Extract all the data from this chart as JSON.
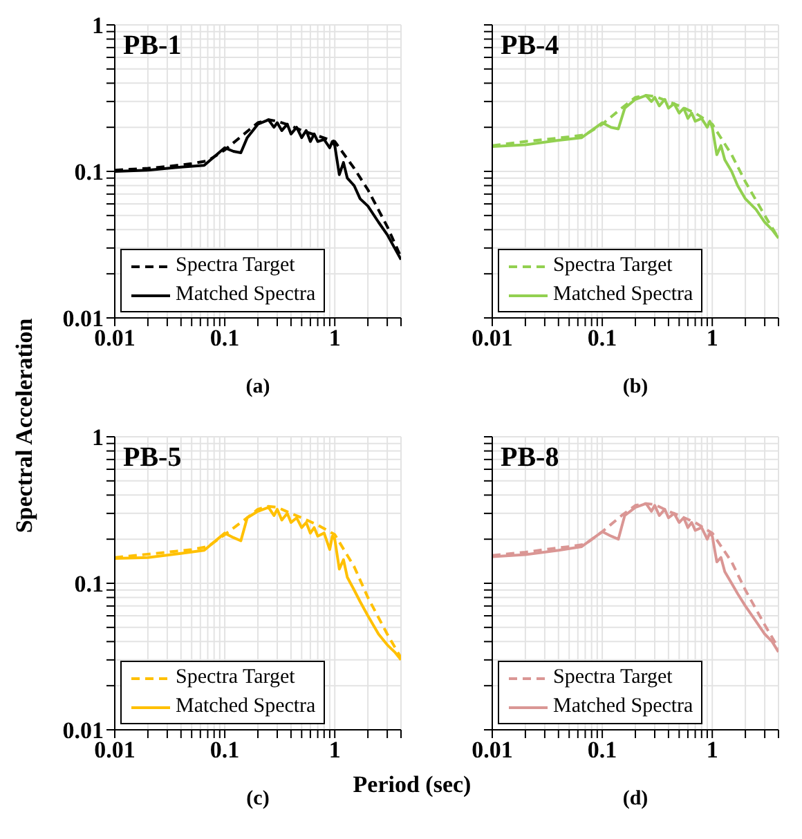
{
  "chart_data": [
    {
      "type": "line",
      "title": "PB-1",
      "ylabel": "Spectral Acceleration",
      "annotations": [
        "(a)"
      ],
      "log": "xy",
      "grid": true,
      "legend": "bottom left",
      "xlim": [
        0.01,
        4
      ],
      "ylim": [
        0.01,
        1
      ],
      "xticks": [
        0.01,
        {
          "value": 0.02,
          "label": null
        },
        {
          "value": 0.03,
          "label": null
        },
        {
          "value": 0.04,
          "label": null
        },
        {
          "value": 0.05,
          "label": null
        },
        {
          "value": 0.06,
          "label": null
        },
        {
          "value": 0.07,
          "label": null
        },
        {
          "value": 0.08,
          "label": null
        },
        {
          "value": 0.09,
          "label": null
        },
        0.1,
        {
          "value": 0.2,
          "label": null
        },
        {
          "value": 0.3,
          "label": null
        },
        {
          "value": 0.4,
          "label": null
        },
        {
          "value": 0.5,
          "label": null
        },
        {
          "value": 0.6,
          "label": null
        },
        {
          "value": 0.7,
          "label": null
        },
        {
          "value": 0.8,
          "label": null
        },
        {
          "value": 0.9,
          "label": null
        },
        1,
        {
          "value": 2,
          "label": null
        },
        {
          "value": 3,
          "label": null
        },
        {
          "value": 4,
          "label": null
        }
      ],
      "yticks": [
        0.01,
        {
          "value": 0.02,
          "label": null
        },
        {
          "value": 0.03,
          "label": null
        },
        {
          "value": 0.04,
          "label": null
        },
        {
          "value": 0.05,
          "label": null
        },
        {
          "value": 0.06,
          "label": null
        },
        {
          "value": 0.07,
          "label": null
        },
        {
          "value": 0.08,
          "label": null
        },
        {
          "value": 0.09,
          "label": null
        },
        0.1,
        {
          "value": 0.2,
          "label": null
        },
        {
          "value": 0.3,
          "label": null
        },
        {
          "value": 0.4,
          "label": null
        },
        {
          "value": 0.5,
          "label": null
        },
        {
          "value": 0.6,
          "label": null
        },
        {
          "value": 0.7,
          "label": null
        },
        {
          "value": 0.8,
          "label": null
        },
        {
          "value": 0.9,
          "label": null
        },
        1
      ],
      "series": [
        {
          "name": "Spectra Target",
          "color": "#000000",
          "line_style": "dashed",
          "x": [
            0.01,
            0.02,
            0.03,
            0.05,
            0.07,
            0.1,
            0.15,
            0.2,
            0.25,
            0.3,
            0.4,
            0.5,
            0.7,
            1,
            1.5,
            2,
            3,
            4
          ],
          "values": [
            0.102,
            0.105,
            0.108,
            0.113,
            0.118,
            0.14,
            0.18,
            0.215,
            0.225,
            0.22,
            0.205,
            0.19,
            0.175,
            0.16,
            0.105,
            0.075,
            0.042,
            0.026
          ]
        },
        {
          "name": "Matched Spectra",
          "color": "#000000",
          "line_style": "solid",
          "x": [
            0.01,
            0.02,
            0.04,
            0.065,
            0.1,
            0.12,
            0.14,
            0.16,
            0.2,
            0.25,
            0.28,
            0.3,
            0.33,
            0.37,
            0.4,
            0.45,
            0.5,
            0.55,
            0.6,
            0.65,
            0.7,
            0.8,
            0.9,
            0.95,
            1,
            1.1,
            1.2,
            1.3,
            1.5,
            1.7,
            2,
            2.5,
            3,
            3.5,
            4
          ],
          "values": [
            0.1,
            0.102,
            0.107,
            0.11,
            0.145,
            0.137,
            0.134,
            0.17,
            0.21,
            0.225,
            0.2,
            0.215,
            0.19,
            0.21,
            0.18,
            0.2,
            0.17,
            0.19,
            0.16,
            0.18,
            0.16,
            0.165,
            0.145,
            0.16,
            0.15,
            0.095,
            0.115,
            0.09,
            0.08,
            0.065,
            0.058,
            0.045,
            0.037,
            0.03,
            0.025
          ]
        }
      ]
    },
    {
      "type": "line",
      "title": "PB-4",
      "annotations": [
        "(b)"
      ],
      "log": "xy",
      "grid": true,
      "legend": "bottom left",
      "tick_labels": "x",
      "xlim": [
        0.01,
        4
      ],
      "ylim": [
        0.01,
        1
      ],
      "xticks": [
        0.01,
        {
          "value": 0.02,
          "label": null
        },
        {
          "value": 0.03,
          "label": null
        },
        {
          "value": 0.04,
          "label": null
        },
        {
          "value": 0.05,
          "label": null
        },
        {
          "value": 0.06,
          "label": null
        },
        {
          "value": 0.07,
          "label": null
        },
        {
          "value": 0.08,
          "label": null
        },
        {
          "value": 0.09,
          "label": null
        },
        0.1,
        {
          "value": 0.2,
          "label": null
        },
        {
          "value": 0.3,
          "label": null
        },
        {
          "value": 0.4,
          "label": null
        },
        {
          "value": 0.5,
          "label": null
        },
        {
          "value": 0.6,
          "label": null
        },
        {
          "value": 0.7,
          "label": null
        },
        {
          "value": 0.8,
          "label": null
        },
        {
          "value": 0.9,
          "label": null
        },
        1,
        {
          "value": 2,
          "label": null
        },
        {
          "value": 3,
          "label": null
        },
        {
          "value": 4,
          "label": null
        }
      ],
      "yticks": [
        0.01,
        {
          "value": 0.02,
          "label": null
        },
        {
          "value": 0.03,
          "label": null
        },
        {
          "value": 0.04,
          "label": null
        },
        {
          "value": 0.05,
          "label": null
        },
        {
          "value": 0.06,
          "label": null
        },
        {
          "value": 0.07,
          "label": null
        },
        {
          "value": 0.08,
          "label": null
        },
        {
          "value": 0.09,
          "label": null
        },
        0.1,
        {
          "value": 0.2,
          "label": null
        },
        {
          "value": 0.3,
          "label": null
        },
        {
          "value": 0.4,
          "label": null
        },
        {
          "value": 0.5,
          "label": null
        },
        {
          "value": 0.6,
          "label": null
        },
        {
          "value": 0.7,
          "label": null
        },
        {
          "value": 0.8,
          "label": null
        },
        {
          "value": 0.9,
          "label": null
        },
        1
      ],
      "series": [
        {
          "name": "Spectra Target",
          "color": "#92d050",
          "line_style": "dashed",
          "x": [
            0.01,
            0.02,
            0.03,
            0.05,
            0.07,
            0.1,
            0.15,
            0.2,
            0.25,
            0.3,
            0.4,
            0.5,
            0.7,
            1,
            1.5,
            2,
            3,
            4
          ],
          "values": [
            0.15,
            0.16,
            0.165,
            0.172,
            0.178,
            0.21,
            0.27,
            0.32,
            0.33,
            0.325,
            0.3,
            0.28,
            0.25,
            0.21,
            0.13,
            0.085,
            0.05,
            0.035
          ]
        },
        {
          "name": "Matched Spectra",
          "color": "#92d050",
          "line_style": "solid",
          "x": [
            0.01,
            0.02,
            0.04,
            0.065,
            0.1,
            0.12,
            0.14,
            0.16,
            0.2,
            0.25,
            0.28,
            0.3,
            0.33,
            0.37,
            0.4,
            0.45,
            0.5,
            0.55,
            0.6,
            0.65,
            0.7,
            0.8,
            0.9,
            0.95,
            1,
            1.1,
            1.2,
            1.3,
            1.5,
            1.7,
            2,
            2.5,
            3,
            3.5,
            4
          ],
          "values": [
            0.148,
            0.152,
            0.163,
            0.17,
            0.215,
            0.2,
            0.195,
            0.27,
            0.31,
            0.33,
            0.3,
            0.32,
            0.28,
            0.31,
            0.27,
            0.29,
            0.25,
            0.27,
            0.23,
            0.25,
            0.22,
            0.23,
            0.2,
            0.22,
            0.2,
            0.13,
            0.15,
            0.12,
            0.1,
            0.08,
            0.065,
            0.055,
            0.045,
            0.04,
            0.035
          ]
        }
      ]
    },
    {
      "type": "line",
      "title": "PB-5",
      "xlabel": "Period (sec)",
      "annotations": [
        "(c)"
      ],
      "log": "xy",
      "grid": true,
      "legend": "bottom left",
      "xlim": [
        0.01,
        4
      ],
      "ylim": [
        0.01,
        1
      ],
      "xticks": [
        0.01,
        {
          "value": 0.02,
          "label": null
        },
        {
          "value": 0.03,
          "label": null
        },
        {
          "value": 0.04,
          "label": null
        },
        {
          "value": 0.05,
          "label": null
        },
        {
          "value": 0.06,
          "label": null
        },
        {
          "value": 0.07,
          "label": null
        },
        {
          "value": 0.08,
          "label": null
        },
        {
          "value": 0.09,
          "label": null
        },
        0.1,
        {
          "value": 0.2,
          "label": null
        },
        {
          "value": 0.3,
          "label": null
        },
        {
          "value": 0.4,
          "label": null
        },
        {
          "value": 0.5,
          "label": null
        },
        {
          "value": 0.6,
          "label": null
        },
        {
          "value": 0.7,
          "label": null
        },
        {
          "value": 0.8,
          "label": null
        },
        {
          "value": 0.9,
          "label": null
        },
        1,
        {
          "value": 2,
          "label": null
        },
        {
          "value": 3,
          "label": null
        },
        {
          "value": 4,
          "label": null
        }
      ],
      "yticks": [
        0.01,
        {
          "value": 0.02,
          "label": null
        },
        {
          "value": 0.03,
          "label": null
        },
        {
          "value": 0.04,
          "label": null
        },
        {
          "value": 0.05,
          "label": null
        },
        {
          "value": 0.06,
          "label": null
        },
        {
          "value": 0.07,
          "label": null
        },
        {
          "value": 0.08,
          "label": null
        },
        {
          "value": 0.09,
          "label": null
        },
        0.1,
        {
          "value": 0.2,
          "label": null
        },
        {
          "value": 0.3,
          "label": null
        },
        {
          "value": 0.4,
          "label": null
        },
        {
          "value": 0.5,
          "label": null
        },
        {
          "value": 0.6,
          "label": null
        },
        {
          "value": 0.7,
          "label": null
        },
        {
          "value": 0.8,
          "label": null
        },
        {
          "value": 0.9,
          "label": null
        },
        1
      ],
      "series": [
        {
          "name": "Spectra Target",
          "color": "#ffc000",
          "line_style": "dashed",
          "x": [
            0.01,
            0.02,
            0.03,
            0.05,
            0.07,
            0.1,
            0.15,
            0.2,
            0.25,
            0.3,
            0.4,
            0.5,
            0.7,
            1,
            1.5,
            2,
            3,
            4
          ],
          "values": [
            0.15,
            0.158,
            0.163,
            0.17,
            0.178,
            0.215,
            0.27,
            0.32,
            0.335,
            0.33,
            0.3,
            0.28,
            0.25,
            0.215,
            0.13,
            0.08,
            0.045,
            0.031
          ]
        },
        {
          "name": "Matched Spectra",
          "color": "#ffc000",
          "line_style": "solid",
          "x": [
            0.01,
            0.02,
            0.04,
            0.065,
            0.1,
            0.12,
            0.14,
            0.16,
            0.2,
            0.25,
            0.28,
            0.3,
            0.33,
            0.37,
            0.4,
            0.45,
            0.5,
            0.55,
            0.6,
            0.65,
            0.7,
            0.8,
            0.9,
            0.95,
            1,
            1.1,
            1.2,
            1.3,
            1.5,
            1.7,
            2,
            2.5,
            3,
            3.5,
            4
          ],
          "values": [
            0.148,
            0.15,
            0.16,
            0.168,
            0.22,
            0.205,
            0.195,
            0.28,
            0.31,
            0.33,
            0.29,
            0.32,
            0.27,
            0.3,
            0.26,
            0.28,
            0.24,
            0.26,
            0.22,
            0.24,
            0.21,
            0.22,
            0.17,
            0.21,
            0.2,
            0.125,
            0.145,
            0.11,
            0.09,
            0.075,
            0.06,
            0.045,
            0.038,
            0.034,
            0.03
          ]
        }
      ]
    },
    {
      "type": "line",
      "title": "PB-8",
      "annotations": [
        "(d)"
      ],
      "log": "xy",
      "grid": true,
      "legend": "bottom left",
      "tick_labels": "x",
      "xlim": [
        0.01,
        4
      ],
      "ylim": [
        0.01,
        1
      ],
      "xticks": [
        0.01,
        {
          "value": 0.02,
          "label": null
        },
        {
          "value": 0.03,
          "label": null
        },
        {
          "value": 0.04,
          "label": null
        },
        {
          "value": 0.05,
          "label": null
        },
        {
          "value": 0.06,
          "label": null
        },
        {
          "value": 0.07,
          "label": null
        },
        {
          "value": 0.08,
          "label": null
        },
        {
          "value": 0.09,
          "label": null
        },
        0.1,
        {
          "value": 0.2,
          "label": null
        },
        {
          "value": 0.3,
          "label": null
        },
        {
          "value": 0.4,
          "label": null
        },
        {
          "value": 0.5,
          "label": null
        },
        {
          "value": 0.6,
          "label": null
        },
        {
          "value": 0.7,
          "label": null
        },
        {
          "value": 0.8,
          "label": null
        },
        {
          "value": 0.9,
          "label": null
        },
        1,
        {
          "value": 2,
          "label": null
        },
        {
          "value": 3,
          "label": null
        },
        {
          "value": 4,
          "label": null
        }
      ],
      "yticks": [
        0.01,
        {
          "value": 0.02,
          "label": null
        },
        {
          "value": 0.03,
          "label": null
        },
        {
          "value": 0.04,
          "label": null
        },
        {
          "value": 0.05,
          "label": null
        },
        {
          "value": 0.06,
          "label": null
        },
        {
          "value": 0.07,
          "label": null
        },
        {
          "value": 0.08,
          "label": null
        },
        {
          "value": 0.09,
          "label": null
        },
        0.1,
        {
          "value": 0.2,
          "label": null
        },
        {
          "value": 0.3,
          "label": null
        },
        {
          "value": 0.4,
          "label": null
        },
        {
          "value": 0.5,
          "label": null
        },
        {
          "value": 0.6,
          "label": null
        },
        {
          "value": 0.7,
          "label": null
        },
        {
          "value": 0.8,
          "label": null
        },
        {
          "value": 0.9,
          "label": null
        },
        1
      ],
      "series": [
        {
          "name": "Spectra Target",
          "color": "#da9694",
          "line_style": "dashed",
          "x": [
            0.01,
            0.02,
            0.03,
            0.05,
            0.07,
            0.1,
            0.15,
            0.2,
            0.25,
            0.3,
            0.4,
            0.5,
            0.7,
            1,
            1.5,
            2,
            3,
            4
          ],
          "values": [
            0.155,
            0.163,
            0.17,
            0.178,
            0.185,
            0.225,
            0.29,
            0.34,
            0.35,
            0.345,
            0.31,
            0.29,
            0.26,
            0.22,
            0.14,
            0.09,
            0.052,
            0.036
          ]
        },
        {
          "name": "Matched Spectra",
          "color": "#da9694",
          "line_style": "solid",
          "x": [
            0.01,
            0.02,
            0.04,
            0.065,
            0.1,
            0.12,
            0.14,
            0.16,
            0.2,
            0.25,
            0.28,
            0.3,
            0.33,
            0.37,
            0.4,
            0.45,
            0.5,
            0.55,
            0.6,
            0.65,
            0.7,
            0.8,
            0.9,
            0.95,
            1,
            1.1,
            1.2,
            1.3,
            1.5,
            1.7,
            2,
            2.5,
            3,
            3.5,
            4
          ],
          "values": [
            0.152,
            0.157,
            0.168,
            0.178,
            0.225,
            0.21,
            0.2,
            0.29,
            0.33,
            0.35,
            0.31,
            0.34,
            0.29,
            0.32,
            0.28,
            0.3,
            0.26,
            0.28,
            0.24,
            0.26,
            0.23,
            0.24,
            0.2,
            0.22,
            0.21,
            0.14,
            0.15,
            0.12,
            0.1,
            0.085,
            0.07,
            0.055,
            0.045,
            0.04,
            0.034
          ]
        }
      ]
    }
  ]
}
